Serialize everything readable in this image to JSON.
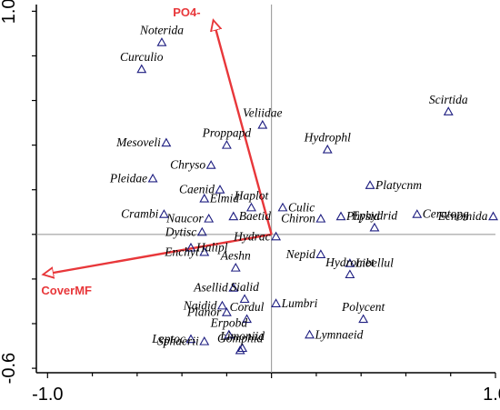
{
  "chart_data": {
    "type": "scatter",
    "title": "",
    "xlabel": "",
    "ylabel": "",
    "xlim": [
      -1.05,
      1.0
    ],
    "ylim": [
      -0.62,
      1.03
    ],
    "x_ticks": [
      -1.0,
      1.0
    ],
    "x_tick_labels": [
      "-1.0",
      "1.0"
    ],
    "y_ticks": [
      -0.6,
      1.0
    ],
    "y_tick_labels": [
      "-0.6",
      "1.0"
    ],
    "grid": false,
    "reference_lines": [
      0,
      0
    ],
    "colors": {
      "arrow": "#e8373a",
      "marker": "#1d1d80",
      "axis": "#000000",
      "refline": "#909090"
    },
    "env_vectors": [
      {
        "name": "PO4-",
        "x": -0.26,
        "y": 0.96
      },
      {
        "name": "CoverMF",
        "x": -1.02,
        "y": -0.18
      }
    ],
    "species": [
      {
        "name": "Noterida",
        "x": -0.49,
        "y": 0.86,
        "label_anchor": "mid"
      },
      {
        "name": "Curculio",
        "x": -0.58,
        "y": 0.74,
        "label_anchor": "mid"
      },
      {
        "name": "Veliidae",
        "x": -0.04,
        "y": 0.49,
        "label_anchor": "mid"
      },
      {
        "name": "Scirtida",
        "x": 0.79,
        "y": 0.55,
        "label_anchor": "mid"
      },
      {
        "name": "Mesoveli",
        "x": -0.47,
        "y": 0.41,
        "label_anchor": "end"
      },
      {
        "name": "Proppapd",
        "x": -0.2,
        "y": 0.4,
        "label_anchor": "mid"
      },
      {
        "name": "Hydrophl",
        "x": 0.25,
        "y": 0.38,
        "label_anchor": "mid"
      },
      {
        "name": "Chryso",
        "x": -0.27,
        "y": 0.31,
        "label_anchor": "end"
      },
      {
        "name": "Pleidae",
        "x": -0.53,
        "y": 0.25,
        "label_anchor": "end"
      },
      {
        "name": "Platycnm",
        "x": 0.44,
        "y": 0.22,
        "label_anchor": "start"
      },
      {
        "name": "Caenid",
        "x": -0.23,
        "y": 0.2,
        "label_anchor": "end"
      },
      {
        "name": "Elmid",
        "x": -0.3,
        "y": 0.16,
        "label_anchor": "start"
      },
      {
        "name": "Haplot",
        "x": -0.09,
        "y": 0.12,
        "label_anchor": "mid"
      },
      {
        "name": "Culic",
        "x": 0.05,
        "y": 0.12,
        "label_anchor": "start"
      },
      {
        "name": "Crambi",
        "x": -0.48,
        "y": 0.09,
        "label_anchor": "end"
      },
      {
        "name": "Physid",
        "x": 0.31,
        "y": 0.08,
        "label_anchor": "start"
      },
      {
        "name": "Ceratopg",
        "x": 0.65,
        "y": 0.09,
        "label_anchor": "start"
      },
      {
        "name": "Naucor",
        "x": -0.28,
        "y": 0.07,
        "label_anchor": "end"
      },
      {
        "name": "Baetid",
        "x": -0.17,
        "y": 0.08,
        "label_anchor": "start"
      },
      {
        "name": "Chiron",
        "x": 0.22,
        "y": 0.07,
        "label_anchor": "end"
      },
      {
        "name": "Ecnomida",
        "x": 0.99,
        "y": 0.08,
        "label_anchor": "end"
      },
      {
        "name": "Dytisc",
        "x": -0.31,
        "y": 0.01,
        "label_anchor": "end"
      },
      {
        "name": "Hydrac",
        "x": 0.02,
        "y": -0.01,
        "label_anchor": "end"
      },
      {
        "name": "Ephydrid",
        "x": 0.46,
        "y": 0.03,
        "label_anchor": "mid"
      },
      {
        "name": "Halipl",
        "x": -0.36,
        "y": -0.06,
        "label_anchor": "start"
      },
      {
        "name": "Enchyt",
        "x": -0.3,
        "y": -0.08,
        "label_anchor": "end"
      },
      {
        "name": "Nepid",
        "x": 0.22,
        "y": -0.09,
        "label_anchor": "end"
      },
      {
        "name": "Libellul",
        "x": 0.35,
        "y": -0.13,
        "label_anchor": "start"
      },
      {
        "name": "Aeshn",
        "x": -0.16,
        "y": -0.15,
        "label_anchor": "mid"
      },
      {
        "name": "Hydromet",
        "x": 0.35,
        "y": -0.18,
        "label_anchor": "mid"
      },
      {
        "name": "Asellid",
        "x": -0.17,
        "y": -0.24,
        "label_anchor": "end"
      },
      {
        "name": "Sialid",
        "x": -0.12,
        "y": -0.29,
        "label_anchor": "mid"
      },
      {
        "name": "Lumbri",
        "x": 0.02,
        "y": -0.31,
        "label_anchor": "start"
      },
      {
        "name": "Naidid",
        "x": -0.22,
        "y": -0.32,
        "label_anchor": "end"
      },
      {
        "name": "Planor",
        "x": -0.2,
        "y": -0.35,
        "label_anchor": "end"
      },
      {
        "name": "Cordul",
        "x": -0.11,
        "y": -0.38,
        "label_anchor": "mid"
      },
      {
        "name": "Polycent",
        "x": 0.41,
        "y": -0.38,
        "label_anchor": "mid"
      },
      {
        "name": "Erpobd",
        "x": -0.19,
        "y": -0.45,
        "label_anchor": "mid"
      },
      {
        "name": "Lymnaeid",
        "x": 0.17,
        "y": -0.45,
        "label_anchor": "start"
      },
      {
        "name": "Leptoc",
        "x": -0.36,
        "y": -0.47,
        "label_anchor": "end"
      },
      {
        "name": "Sphaerii",
        "x": -0.3,
        "y": -0.48,
        "label_anchor": "end"
      },
      {
        "name": "Limoniid",
        "x": -0.13,
        "y": -0.51,
        "label_anchor": "mid"
      },
      {
        "name": "Gomphid",
        "x": -0.14,
        "y": -0.52,
        "label_anchor": "mid"
      }
    ]
  }
}
